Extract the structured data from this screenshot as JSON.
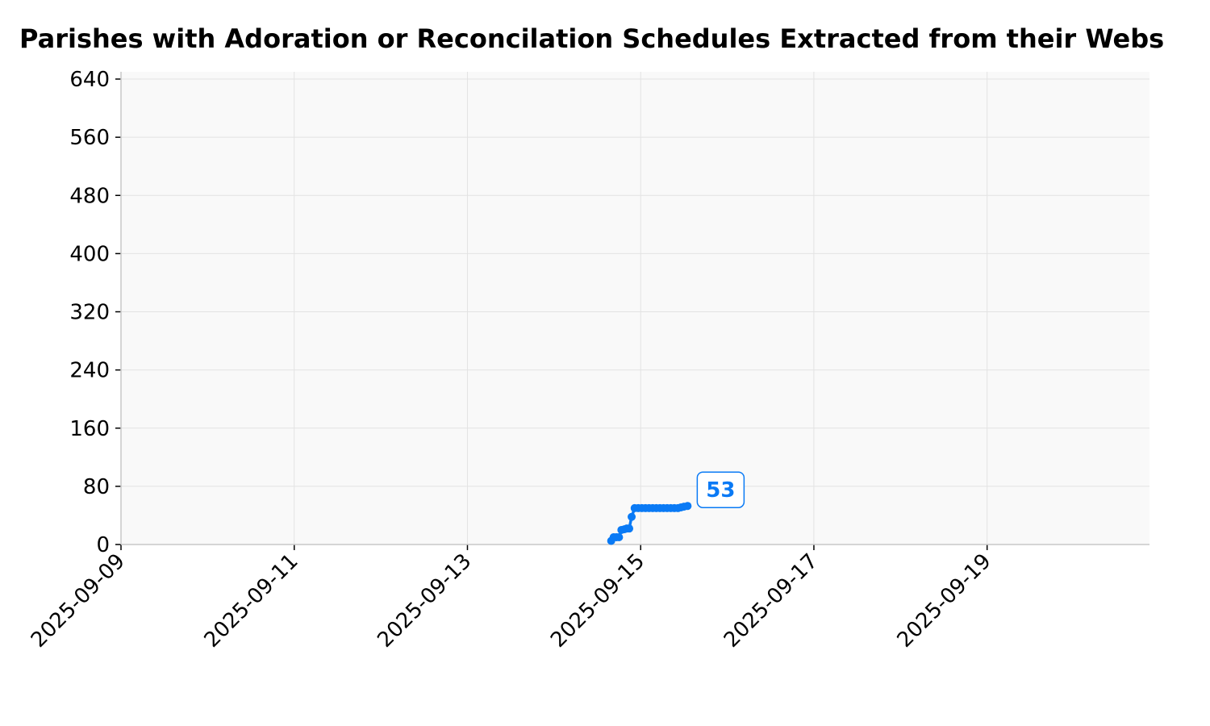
{
  "chart_data": {
    "type": "line",
    "title": "Parishes with Adoration or Reconcilation Schedules Extracted from their Webs",
    "xlabel": "",
    "ylabel": "",
    "x_type": "datetime",
    "xlim": [
      "2025-09-09T00:00",
      "2025-09-20T21:00"
    ],
    "ylim": [
      0,
      650
    ],
    "yticks": [
      0,
      80,
      160,
      240,
      320,
      400,
      480,
      560,
      640
    ],
    "xticks": [
      "2025-09-09",
      "2025-09-11",
      "2025-09-13",
      "2025-09-15",
      "2025-09-17",
      "2025-09-19"
    ],
    "grid": true,
    "series": [
      {
        "color": "#0a7af5",
        "marker": "circle",
        "points": [
          {
            "x": "2025-09-14T15:50",
            "y": 5
          },
          {
            "x": "2025-09-14T16:30",
            "y": 10
          },
          {
            "x": "2025-09-14T17:20",
            "y": 10
          },
          {
            "x": "2025-09-14T18:00",
            "y": 10
          },
          {
            "x": "2025-09-14T18:40",
            "y": 20
          },
          {
            "x": "2025-09-14T19:30",
            "y": 21
          },
          {
            "x": "2025-09-14T20:10",
            "y": 22
          },
          {
            "x": "2025-09-14T20:50",
            "y": 22
          },
          {
            "x": "2025-09-14T21:30",
            "y": 38
          },
          {
            "x": "2025-09-14T22:20",
            "y": 50
          },
          {
            "x": "2025-09-14T23:20",
            "y": 50
          },
          {
            "x": "2025-09-15T00:20",
            "y": 50
          },
          {
            "x": "2025-09-15T01:20",
            "y": 50
          },
          {
            "x": "2025-09-15T02:20",
            "y": 50
          },
          {
            "x": "2025-09-15T03:20",
            "y": 50
          },
          {
            "x": "2025-09-15T04:20",
            "y": 50
          },
          {
            "x": "2025-09-15T05:20",
            "y": 50
          },
          {
            "x": "2025-09-15T06:20",
            "y": 50
          },
          {
            "x": "2025-09-15T07:20",
            "y": 50
          },
          {
            "x": "2025-09-15T08:20",
            "y": 50
          },
          {
            "x": "2025-09-15T09:20",
            "y": 50
          },
          {
            "x": "2025-09-15T10:20",
            "y": 50
          },
          {
            "x": "2025-09-15T11:10",
            "y": 51
          },
          {
            "x": "2025-09-15T12:00",
            "y": 52
          },
          {
            "x": "2025-09-15T13:00",
            "y": 53
          }
        ]
      }
    ],
    "annotation": {
      "text": "53",
      "color": "#0a7af5"
    },
    "colors": {
      "plot_bg": "#f9f9f9",
      "grid": "#e3e3e3",
      "spine": "#c8c8c8",
      "line": "#0a7af5"
    }
  }
}
